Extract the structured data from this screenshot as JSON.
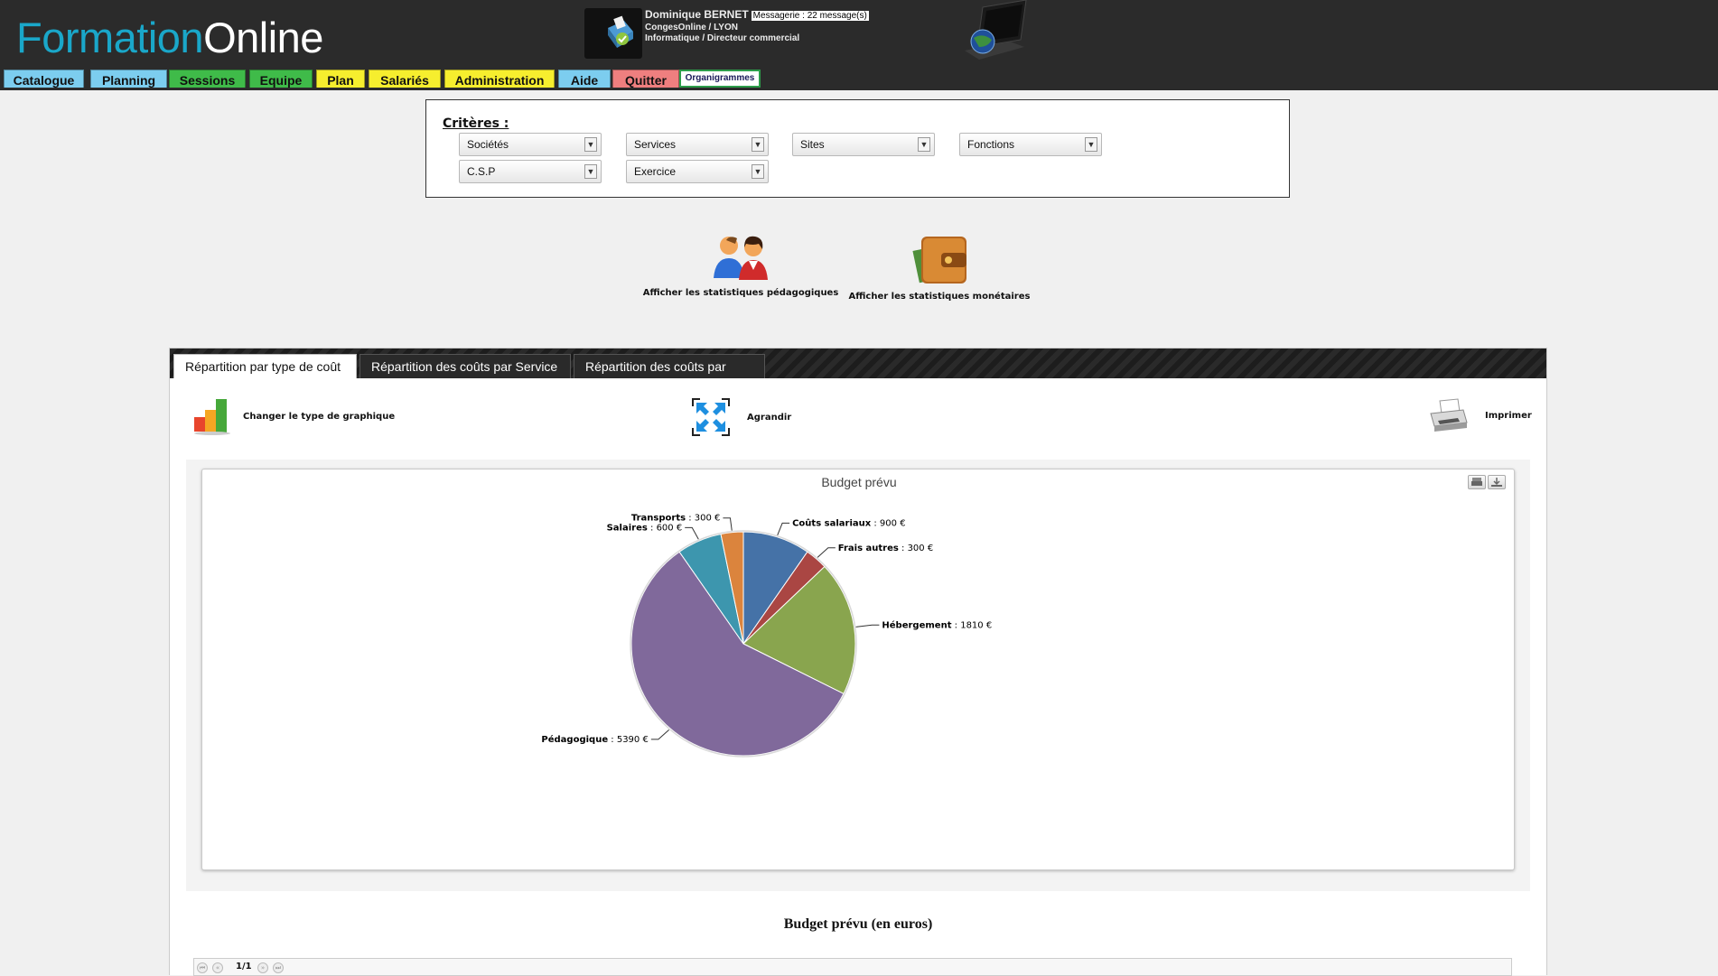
{
  "header": {
    "logo_part1": "Formation",
    "logo_part2": "Online",
    "user_name": "Dominique BERNET",
    "messages": "Messagerie : 22 message(s)",
    "user_line2": "CongesOnline / LYON",
    "user_line3": "Informatique / Directeur commercial"
  },
  "nav": [
    {
      "label": "Catalogue",
      "color": "#7ccdef"
    },
    {
      "label": "Planning",
      "color": "#7ccdef"
    },
    {
      "label": "Sessions",
      "color": "#3fbb49"
    },
    {
      "label": "Equipe",
      "color": "#3fbb49"
    },
    {
      "label": "Plan",
      "color": "#f6ee2e"
    },
    {
      "label": "Salariés",
      "color": "#f6ee2e"
    },
    {
      "label": "Administration",
      "color": "#f6ee2e"
    },
    {
      "label": "Aide",
      "color": "#7ccdef"
    },
    {
      "label": "Quitter",
      "color": "#ef7f7f"
    },
    {
      "label": "Organigrammes",
      "color": "#ffffff"
    }
  ],
  "criteria": {
    "label": "Critères :",
    "selects": [
      "Sociétés",
      "Services",
      "Sites",
      "Fonctions",
      "C.S.P",
      "Exercice"
    ]
  },
  "stats": {
    "pedagogic_label": "Afficher les statistiques pédagogiques",
    "monetary_label": "Afficher les statistiques monétaires"
  },
  "tabs": [
    "Répartition par type de coût",
    "Répartition des coûts par Service",
    "Répartition des coûts par CSP"
  ],
  "tools": {
    "change_chart": "Changer le type de graphique",
    "enlarge": "Agrandir",
    "print": "Imprimer"
  },
  "chart_data": {
    "type": "pie",
    "title": "Budget prévu",
    "slices": [
      {
        "label": "Coûts salariaux",
        "value": 900,
        "display": " : 900 €",
        "color": "#4572a7"
      },
      {
        "label": "Frais autres",
        "value": 300,
        "display": " : 300 €",
        "color": "#aa4643"
      },
      {
        "label": "Hébergement",
        "value": 1810,
        "display": " : 1810 €",
        "color": "#89a54e"
      },
      {
        "label": "Pédagogique",
        "value": 5390,
        "display": " : 5390 €",
        "color": "#80699b"
      },
      {
        "label": "Salaires",
        "value": 600,
        "display": " : 600 €",
        "color": "#3d96ae"
      },
      {
        "label": "Transports",
        "value": 300,
        "display": " : 300 €",
        "color": "#db843d"
      }
    ]
  },
  "table": {
    "title": "Budget prévu (en euros)",
    "page": "1/1"
  }
}
